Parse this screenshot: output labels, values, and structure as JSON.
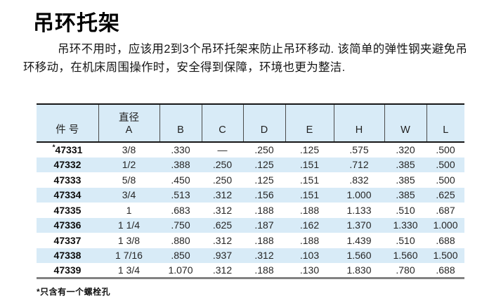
{
  "page": {
    "title": "吊环托架",
    "intro": "吊环不用时，应该用2到3个吊环托架来防止吊环移动. 该简单的弹性钢夹避免吊环移动，在机床周围操作时，安全得到保障，环境也更为整洁.",
    "footnote": "*只含有一个螺栓孔"
  },
  "colors": {
    "stripe_blue": "#d8ebf7",
    "border_dark": "#161616",
    "border_gray": "#828282"
  },
  "table": {
    "header_keys": [
      "part-no",
      "diameter-a",
      "b",
      "c",
      "d",
      "e",
      "h",
      "w",
      "l"
    ],
    "headers": [
      [
        "件 号"
      ],
      [
        "直径",
        "A"
      ],
      [
        "B"
      ],
      [
        "C"
      ],
      [
        "D"
      ],
      [
        "E"
      ],
      [
        "H"
      ],
      [
        "W"
      ],
      [
        "L"
      ]
    ],
    "rows": [
      [
        "*47331",
        "3/8",
        ".330",
        "—",
        ".250",
        ".125",
        ".575",
        ".320",
        ".500"
      ],
      [
        "47332",
        "1/2",
        ".388",
        ".250",
        ".125",
        ".151",
        ".712",
        ".385",
        ".500"
      ],
      [
        "47333",
        "5/8",
        ".450",
        ".250",
        ".125",
        ".151",
        ".832",
        ".385",
        ".500"
      ],
      [
        "47334",
        "3/4",
        ".513",
        ".312",
        ".156",
        ".151",
        "1.000",
        ".385",
        ".625"
      ],
      [
        "47335",
        "1",
        ".683",
        ".312",
        ".188",
        ".188",
        "1.133",
        ".510",
        ".687"
      ],
      [
        "47336",
        "1 1/4",
        ".750",
        ".625",
        ".187",
        ".162",
        "1.370",
        "1.330",
        "1.000"
      ],
      [
        "47337",
        "1 3/8",
        ".880",
        ".312",
        ".188",
        ".188",
        "1.439",
        ".510",
        ".688"
      ],
      [
        "47338",
        "1 7/16",
        ".850",
        ".937",
        ".312",
        ".103",
        "1.560",
        "1.560",
        "1.500"
      ],
      [
        "47339",
        "1 3/4",
        "1.070",
        ".312",
        ".188",
        ".130",
        "1.830",
        ".780",
        ".688"
      ]
    ]
  }
}
